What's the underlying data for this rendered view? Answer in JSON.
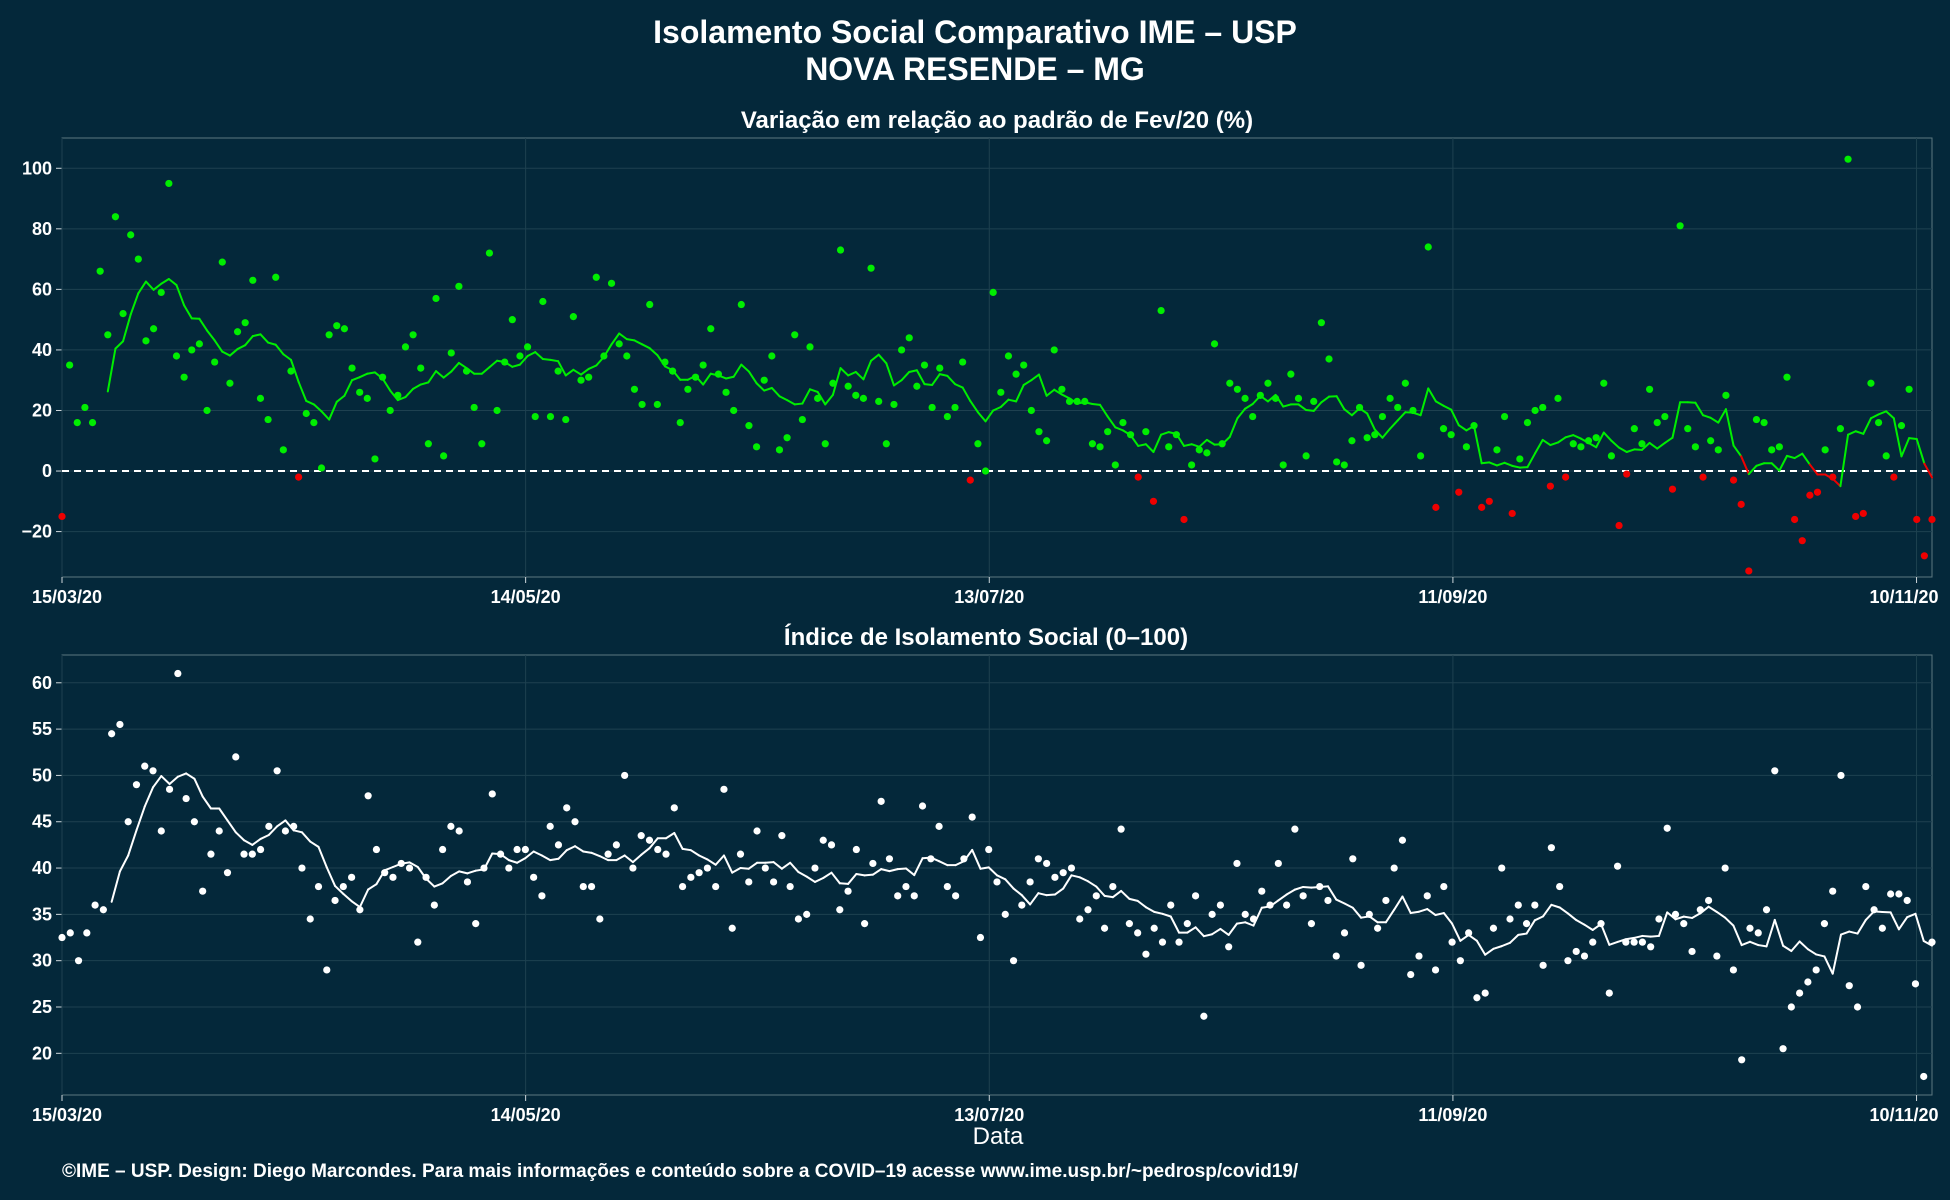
{
  "figure": {
    "title_line1": "Isolamento Social Comparativo IME – USP",
    "title_line2": "NOVA RESENDE – MG",
    "xlabel": "Data",
    "footer": "©IME – USP. Design: Diego Marcondes. Para mais informações e conteúdo sobre a COVID–19 acesse www.ime.usp.br/~pedrosp/covid19/",
    "colors": {
      "background": "#04283a",
      "positive": "#00ee00",
      "negative": "#ee0000",
      "index": "#ffffff",
      "grid": "#1e4150",
      "zero_line": "#ffffff"
    }
  },
  "chart_data": [
    {
      "type": "scatter",
      "title": "Variação em relação ao padrão de Fev/20 (%)",
      "x_start": "15/03/20",
      "x_end": "12/11/20",
      "x_tick_labels": [
        "15/03/20",
        "14/05/20",
        "13/07/20",
        "11/09/20",
        "10/11/20"
      ],
      "y_ticks": [
        -20,
        0,
        20,
        40,
        60,
        80,
        100
      ],
      "ylim": [
        -35,
        110
      ],
      "reference_line": 0,
      "point_color_rule": "green if value >= 0, red if value < 0",
      "line": "7-day moving average",
      "values": [
        -15,
        35,
        16,
        21,
        16,
        66,
        45,
        84,
        52,
        78,
        70,
        43,
        47,
        59,
        95,
        38,
        31,
        40,
        42,
        20,
        36,
        69,
        29,
        46,
        49,
        63,
        24,
        17,
        64,
        7,
        33,
        -2,
        19,
        16,
        1,
        45,
        48,
        47,
        34,
        26,
        24,
        4,
        31,
        20,
        25,
        41,
        45,
        34,
        9,
        57,
        5,
        39,
        61,
        33,
        21,
        9,
        72,
        20,
        36,
        50,
        38,
        41,
        18,
        56,
        18,
        33,
        17,
        51,
        30,
        31,
        64,
        38,
        62,
        42,
        38,
        27,
        22,
        55,
        22,
        36,
        33,
        16,
        27,
        31,
        35,
        47,
        32,
        26,
        20,
        55,
        15,
        8,
        30,
        38,
        7,
        11,
        45,
        17,
        41,
        24,
        9,
        29,
        73,
        28,
        25,
        24,
        67,
        23,
        9,
        22,
        40,
        44,
        28,
        35,
        21,
        34,
        18,
        21,
        36,
        -3,
        9,
        0,
        59,
        26,
        38,
        32,
        35,
        20,
        13,
        10,
        40,
        27,
        23,
        23,
        23,
        9,
        8,
        13,
        2,
        16,
        12,
        -2,
        13,
        -10,
        53,
        8,
        12,
        -16,
        2,
        7,
        6,
        42,
        9,
        29,
        27,
        24,
        18,
        25,
        29,
        24,
        2,
        32,
        24,
        5,
        23,
        49,
        37,
        3,
        2,
        10,
        21,
        11,
        12,
        18,
        24,
        21,
        29,
        20,
        5,
        74,
        -12,
        14,
        12,
        -7,
        8,
        15,
        -12,
        -10,
        7,
        18,
        -14,
        4,
        16,
        20,
        21,
        -5,
        24,
        -2,
        9,
        8,
        10,
        11,
        29,
        5,
        -18,
        -1,
        14,
        9,
        27,
        16,
        18,
        -6,
        81,
        14,
        8,
        -2,
        10,
        7,
        25,
        -3,
        -11,
        -33,
        17,
        16,
        7,
        8,
        31,
        -16,
        -23,
        -8,
        -7,
        7,
        -2,
        14,
        103,
        -15,
        -14,
        29,
        16,
        5,
        -2,
        15,
        27,
        -16,
        -28,
        -16
      ]
    },
    {
      "type": "scatter",
      "title": "Índice de Isolamento Social (0–100)",
      "x_start": "15/03/20",
      "x_end": "12/11/20",
      "x_tick_labels": [
        "15/03/20",
        "14/05/20",
        "13/07/20",
        "11/09/20",
        "10/11/20"
      ],
      "y_ticks": [
        20,
        25,
        30,
        35,
        40,
        45,
        50,
        55,
        60
      ],
      "ylim": [
        15.5,
        63
      ],
      "line": "7-day moving average",
      "values": [
        32.5,
        33,
        30,
        33,
        36,
        35.5,
        54.5,
        55.5,
        45,
        49,
        51,
        50.5,
        44,
        48.5,
        61,
        47.5,
        45,
        37.5,
        41.5,
        44,
        39.5,
        52,
        41.5,
        41.5,
        42,
        44.5,
        50.5,
        44,
        44.5,
        40,
        34.5,
        38,
        29,
        36.5,
        38,
        39,
        35.5,
        47.8,
        42,
        39.5,
        39,
        40.5,
        40,
        32,
        39,
        36,
        42,
        44.5,
        44,
        38.5,
        34,
        40,
        48,
        41.5,
        40,
        42,
        42,
        39,
        37,
        44.5,
        42.5,
        46.5,
        45,
        38,
        38,
        34.5,
        41.5,
        42.5,
        50,
        40,
        43.5,
        43,
        42,
        41.5,
        46.5,
        38,
        39,
        39.5,
        40,
        38,
        48.5,
        33.5,
        41.5,
        38.5,
        44,
        40,
        38.5,
        43.5,
        38,
        34.5,
        35,
        40,
        43,
        42.5,
        35.5,
        37.5,
        42,
        34,
        40.5,
        47.2,
        41,
        37,
        38,
        37,
        46.7,
        41,
        44.5,
        38,
        37,
        41,
        45.5,
        32.5,
        42,
        38.5,
        35,
        30,
        36,
        38.5,
        41,
        40.5,
        39,
        39.5,
        40,
        34.5,
        35.5,
        37,
        33.5,
        38,
        44.2,
        34,
        33,
        30.7,
        33.5,
        32,
        36,
        32,
        34,
        37,
        24,
        35,
        36,
        31.5,
        40.5,
        35,
        34.5,
        37.5,
        36,
        40.5,
        36,
        44.2,
        37,
        34,
        38,
        36.5,
        30.5,
        33,
        41,
        29.5,
        35,
        33.5,
        36.5,
        40,
        43,
        28.5,
        30.5,
        37,
        29,
        38,
        32,
        30,
        33,
        26,
        26.5,
        33.5,
        40,
        34.5,
        36,
        34,
        36,
        29.5,
        42.2,
        38,
        30,
        31,
        30.5,
        32,
        34,
        26.5,
        40.2,
        32,
        32,
        32,
        31.5,
        34.5,
        44.3,
        35,
        34,
        31,
        35.5,
        36.5,
        30.5,
        40,
        29,
        19.3,
        33.5,
        33,
        35.5,
        50.5,
        20.5,
        25,
        26.5,
        27.7,
        29,
        34,
        37.5,
        50,
        27.3,
        25,
        38,
        35.5,
        33.5,
        37.2,
        37.2,
        36.5,
        27.5,
        17.5,
        32
      ]
    }
  ]
}
